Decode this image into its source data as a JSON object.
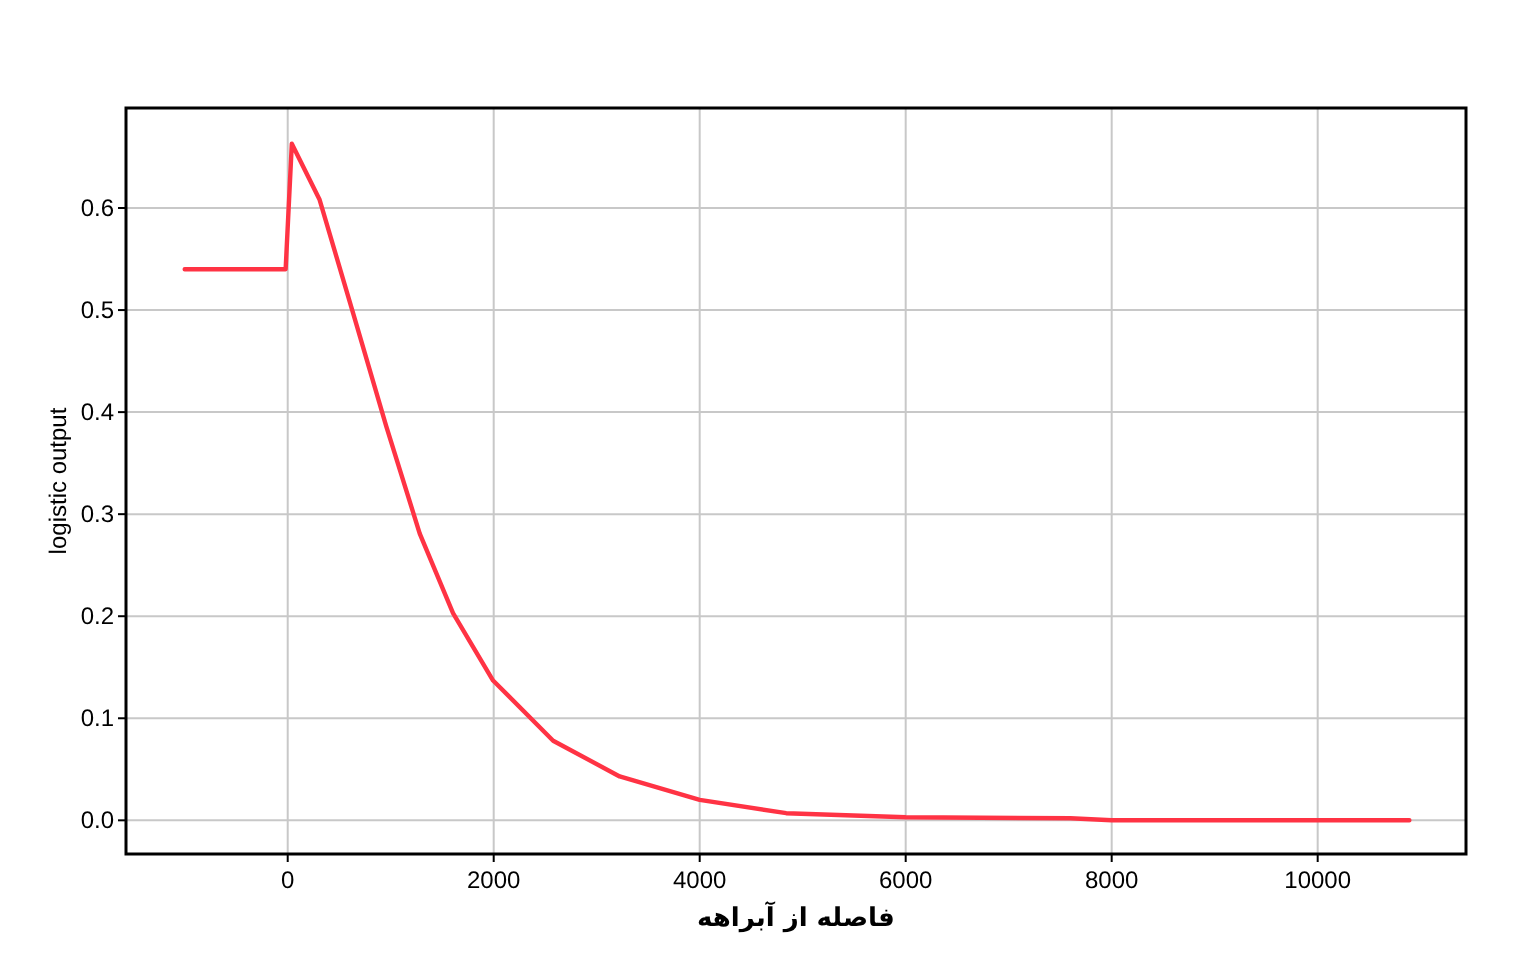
{
  "chart_data": {
    "type": "line",
    "xlabel": "فاصله از آبراهه",
    "ylabel": "logistic output",
    "x": [
      -1000,
      -20,
      40,
      310,
      635,
      957,
      1282,
      1605,
      1994,
      2577,
      3223,
      4000,
      4840,
      6000,
      7600,
      8000,
      10890
    ],
    "series": [
      {
        "color": "#ff3344",
        "values": [
          0.54,
          0.54,
          0.663,
          0.608,
          0.497,
          0.386,
          0.281,
          0.203,
          0.137,
          0.078,
          0.043,
          0.02,
          0.007,
          0.003,
          0.002,
          0.0,
          0.0
        ]
      }
    ],
    "xlim": [
      -1570,
      11440
    ],
    "ylim": [
      -0.033,
      0.698
    ],
    "xticks": [
      0,
      2000,
      4000,
      6000,
      8000,
      10000
    ],
    "yticks": [
      {
        "value": 0.0,
        "label": "0.0"
      },
      {
        "value": 0.1,
        "label": "0.1"
      },
      {
        "value": 0.2,
        "label": "0.2"
      },
      {
        "value": 0.3,
        "label": "0.3"
      },
      {
        "value": 0.4,
        "label": "0.4"
      },
      {
        "value": 0.5,
        "label": "0.5"
      },
      {
        "value": 0.6,
        "label": "0.6"
      }
    ],
    "grid": true,
    "marker": "none",
    "line_style": "solid"
  }
}
